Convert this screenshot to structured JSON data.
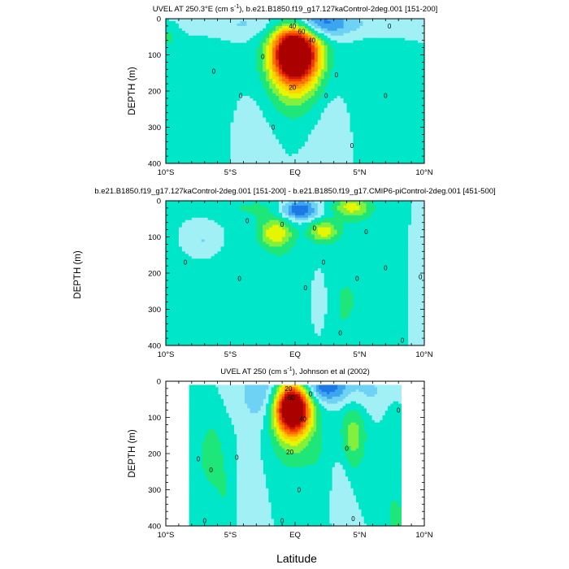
{
  "figure": {
    "xlabel": "Latitude",
    "shared_ylabel": "DEPTH (m)"
  },
  "chart_data": [
    {
      "type": "heatmap",
      "title": "UVEL AT 250.3°E (cm s",
      "title_sup": "-1",
      "title_suffix": "), b.e21.B1850.f19_g17.127kaControl-2deg.001 [151-200]",
      "ylabel": "DEPTH (m)",
      "xlim": [
        -10,
        10
      ],
      "ylim": [
        400,
        0
      ],
      "x_ticks": [
        -10,
        -5,
        0,
        5,
        10
      ],
      "x_tick_labels": [
        "10°S",
        "5°S",
        "EQ",
        "5°N",
        "10°N"
      ],
      "y_ticks": [
        0,
        100,
        200,
        300,
        400
      ],
      "y_tick_labels": [
        "0",
        "100",
        "200",
        "300",
        "400"
      ],
      "contour_labels": [
        {
          "text": "40",
          "lat": -0.2,
          "depth": 20
        },
        {
          "text": "60",
          "lat": 0.5,
          "depth": 35
        },
        {
          "text": "40",
          "lat": 1.3,
          "depth": 60
        },
        {
          "text": "20",
          "lat": -0.2,
          "depth": 190
        },
        {
          "text": "0",
          "lat": -6.3,
          "depth": 145
        },
        {
          "text": "0",
          "lat": -4.2,
          "depth": 212
        },
        {
          "text": "0",
          "lat": -2.5,
          "depth": 105
        },
        {
          "text": "0",
          "lat": -1.7,
          "depth": 300
        },
        {
          "text": "0",
          "lat": 2.4,
          "depth": 212
        },
        {
          "text": "0",
          "lat": 3.2,
          "depth": 155
        },
        {
          "text": "0",
          "lat": 4.4,
          "depth": 350
        },
        {
          "text": "0",
          "lat": 7.0,
          "depth": 212
        },
        {
          "text": "0",
          "lat": 7.3,
          "depth": 20
        }
      ],
      "field": {
        "base": 1,
        "features": [
          {
            "lat": 0.0,
            "depth": 95,
            "amp": 12.5,
            "sx": 1.2,
            "sy": 55
          },
          {
            "lat": 0.0,
            "depth": 150,
            "amp": 3.0,
            "sx": 1.6,
            "sy": 90
          },
          {
            "lat": 1.4,
            "depth": 10,
            "amp": -3.5,
            "sx": 1.6,
            "sy": 28
          },
          {
            "lat": -4.5,
            "depth": 15,
            "amp": -1.2,
            "sx": 3.5,
            "sy": 30
          },
          {
            "lat": 4.5,
            "depth": 15,
            "amp": -1.2,
            "sx": 2.5,
            "sy": 30
          },
          {
            "lat": -7.0,
            "depth": 220,
            "amp": 0.8,
            "sx": 2.0,
            "sy": 180
          },
          {
            "lat": 5.5,
            "depth": 220,
            "amp": 0.8,
            "sx": 1.8,
            "sy": 180
          },
          {
            "lat": -9.8,
            "depth": 50,
            "amp": 1.2,
            "sx": 0.6,
            "sy": 25
          },
          {
            "lat": 3.0,
            "depth": 300,
            "amp": -0.9,
            "sx": 1.5,
            "sy": 120
          },
          {
            "lat": -3.5,
            "depth": 320,
            "amp": -0.7,
            "sx": 1.5,
            "sy": 100
          }
        ]
      }
    },
    {
      "type": "heatmap",
      "title": "b.e21.B1850.f19_g17.127kaControl-2deg.001 [151-200] - b.e21.B1850.f19_g17.CMIP6-piControl-2deg.001 [451-500]",
      "ylabel": "",
      "xlim": [
        -10,
        10
      ],
      "ylim": [
        400,
        0
      ],
      "x_ticks": [
        -10,
        -5,
        0,
        5,
        10
      ],
      "x_tick_labels": [
        "10°S",
        "5°S",
        "EQ",
        "5°N",
        "10°N"
      ],
      "y_ticks": [
        0,
        100,
        200,
        300,
        400
      ],
      "y_tick_labels": [
        "0",
        "100",
        "200",
        "300",
        "400"
      ],
      "contour_labels": [
        {
          "text": "0",
          "lat": -3.7,
          "depth": 55
        },
        {
          "text": "0",
          "lat": -1.0,
          "depth": 65
        },
        {
          "text": "0",
          "lat": 1.5,
          "depth": 75
        },
        {
          "text": "0",
          "lat": 5.5,
          "depth": 85
        },
        {
          "text": "0",
          "lat": -8.5,
          "depth": 170
        },
        {
          "text": "0",
          "lat": -4.3,
          "depth": 215
        },
        {
          "text": "0",
          "lat": 0.8,
          "depth": 240
        },
        {
          "text": "0",
          "lat": 2.2,
          "depth": 170
        },
        {
          "text": "0",
          "lat": 4.8,
          "depth": 215
        },
        {
          "text": "0",
          "lat": 3.5,
          "depth": 365
        },
        {
          "text": "0",
          "lat": 7.0,
          "depth": 185
        },
        {
          "text": "0",
          "lat": 9.7,
          "depth": 210
        },
        {
          "text": "0",
          "lat": 8.3,
          "depth": 385
        }
      ],
      "field": {
        "base": 1,
        "features": [
          {
            "lat": 0.3,
            "depth": 25,
            "amp": -4.5,
            "sx": 1.0,
            "sy": 20
          },
          {
            "lat": -1.5,
            "depth": 90,
            "amp": 3.5,
            "sx": 0.9,
            "sy": 28
          },
          {
            "lat": 2.2,
            "depth": 85,
            "amp": 3.5,
            "sx": 0.8,
            "sy": 22
          },
          {
            "lat": 4.4,
            "depth": 18,
            "amp": 3.2,
            "sx": 1.0,
            "sy": 22
          },
          {
            "lat": -3.0,
            "depth": 20,
            "amp": 1.0,
            "sx": 2.5,
            "sy": 25
          },
          {
            "lat": -7.0,
            "depth": 110,
            "amp": -1.5,
            "sx": 1.0,
            "sy": 40
          },
          {
            "lat": -6.5,
            "depth": 250,
            "amp": 0.8,
            "sx": 1.8,
            "sy": 150
          },
          {
            "lat": 6.0,
            "depth": 230,
            "amp": 0.8,
            "sx": 2.0,
            "sy": 160
          },
          {
            "lat": -1.0,
            "depth": 250,
            "amp": 0.9,
            "sx": 1.2,
            "sy": 140
          },
          {
            "lat": 2.0,
            "depth": 280,
            "amp": -0.8,
            "sx": 0.5,
            "sy": 60
          },
          {
            "lat": 3.5,
            "depth": 300,
            "amp": 0.7,
            "sx": 1.0,
            "sy": 100
          },
          {
            "lat": 9.6,
            "depth": 260,
            "amp": -0.8,
            "sx": 0.6,
            "sy": 150
          }
        ]
      }
    },
    {
      "type": "heatmap",
      "title": "UVEL AT 250 (cm s",
      "title_sup": "-1",
      "title_suffix": "), Johnson et al (2002)",
      "ylabel": "DEPTH (m)",
      "xlim": [
        -10,
        10
      ],
      "ylim": [
        400,
        0
      ],
      "x_ticks": [
        -10,
        -5,
        0,
        5,
        10
      ],
      "x_tick_labels": [
        "10°S",
        "5°S",
        "EQ",
        "5°N",
        "10°N"
      ],
      "y_ticks": [
        0,
        100,
        200,
        300,
        400
      ],
      "y_tick_labels": [
        "0",
        "100",
        "200",
        "300",
        "400"
      ],
      "data_lat_range": [
        -8.2,
        8.2
      ],
      "data_depth_range": [
        10,
        400
      ],
      "contour_labels": [
        {
          "text": "20",
          "lat": -0.5,
          "depth": 20
        },
        {
          "text": "60",
          "lat": -0.3,
          "depth": 45
        },
        {
          "text": "40",
          "lat": 0.6,
          "depth": 105
        },
        {
          "text": "20",
          "lat": -0.4,
          "depth": 195
        },
        {
          "text": "0",
          "lat": 1.2,
          "depth": 35
        },
        {
          "text": "0",
          "lat": -7.5,
          "depth": 215
        },
        {
          "text": "0",
          "lat": -6.5,
          "depth": 245
        },
        {
          "text": "0",
          "lat": -4.5,
          "depth": 210
        },
        {
          "text": "0",
          "lat": 0.3,
          "depth": 300
        },
        {
          "text": "0",
          "lat": 4.0,
          "depth": 185
        },
        {
          "text": "0",
          "lat": 4.5,
          "depth": 380
        },
        {
          "text": "0",
          "lat": 8.0,
          "depth": 80
        },
        {
          "text": "0",
          "lat": -7.0,
          "depth": 385
        },
        {
          "text": "0",
          "lat": -1.0,
          "depth": 385
        }
      ],
      "field": {
        "base": 1,
        "features": [
          {
            "lat": -0.2,
            "depth": 75,
            "amp": 12.5,
            "sx": 0.9,
            "sy": 45
          },
          {
            "lat": -0.2,
            "depth": 130,
            "amp": 2.5,
            "sx": 1.2,
            "sy": 80
          },
          {
            "lat": 2.3,
            "depth": 15,
            "amp": -3.8,
            "sx": 1.2,
            "sy": 30
          },
          {
            "lat": -2.5,
            "depth": 30,
            "amp": -2.0,
            "sx": 1.2,
            "sy": 60
          },
          {
            "lat": 5.5,
            "depth": 30,
            "amp": -1.2,
            "sx": 1.5,
            "sy": 40
          },
          {
            "lat": -6.5,
            "depth": 200,
            "amp": 1.8,
            "sx": 0.5,
            "sy": 60
          },
          {
            "lat": -5.5,
            "depth": 300,
            "amp": 1.0,
            "sx": 0.6,
            "sy": 100
          },
          {
            "lat": 4.5,
            "depth": 150,
            "amp": 2.5,
            "sx": 0.7,
            "sy": 70
          },
          {
            "lat": 3.5,
            "depth": 300,
            "amp": -0.9,
            "sx": 0.6,
            "sy": 80
          },
          {
            "lat": -3.5,
            "depth": 300,
            "amp": -0.9,
            "sx": 0.6,
            "sy": 100
          },
          {
            "lat": 2.0,
            "depth": 250,
            "amp": 0.7,
            "sx": 0.8,
            "sy": 120
          },
          {
            "lat": 7.5,
            "depth": 250,
            "amp": 0.8,
            "sx": 0.5,
            "sy": 150
          },
          {
            "lat": 8.0,
            "depth": 380,
            "amp": 1.0,
            "sx": 0.5,
            "sy": 40
          },
          {
            "lat": -7.8,
            "depth": 300,
            "amp": 0.8,
            "sx": 0.5,
            "sy": 150
          }
        ]
      }
    }
  ]
}
